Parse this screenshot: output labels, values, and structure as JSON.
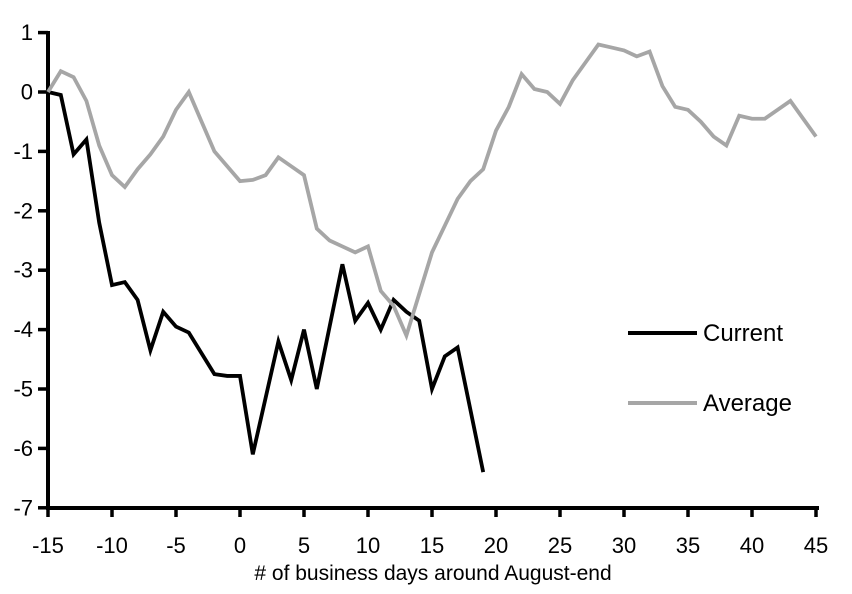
{
  "chart_data": {
    "type": "line",
    "title": "",
    "xlabel": "# of business days around August-end",
    "ylabel": "",
    "xlim": [
      -15,
      45
    ],
    "ylim": [
      -7,
      1
    ],
    "x_ticks": [
      -15,
      -10,
      -5,
      0,
      5,
      10,
      15,
      20,
      25,
      30,
      35,
      40,
      45
    ],
    "y_ticks": [
      1,
      0,
      -1,
      -2,
      -3,
      -4,
      -5,
      -6,
      -7
    ],
    "grid": false,
    "legend_position": "right-middle",
    "axis_color": "#000000",
    "series": [
      {
        "name": "Current",
        "color": "#000000",
        "x_start": -15,
        "x_step": 1,
        "values": [
          0,
          -0.05,
          -1.05,
          -0.8,
          -2.2,
          -3.25,
          -3.2,
          -3.5,
          -4.35,
          -3.7,
          -3.95,
          -4.05,
          -4.4,
          -4.75,
          -4.78,
          -4.78,
          -6.1,
          -5.15,
          -4.2,
          -4.85,
          -4.0,
          -5.0,
          -3.95,
          -2.9,
          -3.85,
          -3.55,
          -4.0,
          -3.5,
          -3.7,
          -3.85,
          -5.0,
          -4.45,
          -4.3,
          -5.35,
          -6.4
        ]
      },
      {
        "name": "Average",
        "color": "#a6a6a6",
        "x_start": -15,
        "x_step": 1,
        "values": [
          0,
          0.35,
          0.25,
          -0.15,
          -0.9,
          -1.4,
          -1.6,
          -1.3,
          -1.05,
          -0.75,
          -0.3,
          0,
          -0.5,
          -1.0,
          -1.25,
          -1.5,
          -1.48,
          -1.4,
          -1.1,
          -1.25,
          -1.4,
          -2.3,
          -2.5,
          -2.6,
          -2.7,
          -2.6,
          -3.35,
          -3.6,
          -4.1,
          -3.4,
          -2.7,
          -2.25,
          -1.8,
          -1.5,
          -1.3,
          -0.65,
          -0.25,
          0.3,
          0.05,
          0,
          -0.2,
          0.2,
          0.5,
          0.8,
          0.75,
          0.7,
          0.6,
          0.68,
          0.1,
          -0.25,
          -0.3,
          -0.5,
          -0.75,
          -0.9,
          -0.4,
          -0.45,
          -0.45,
          -0.3,
          -0.15,
          -0.45,
          -0.75
        ]
      }
    ]
  }
}
